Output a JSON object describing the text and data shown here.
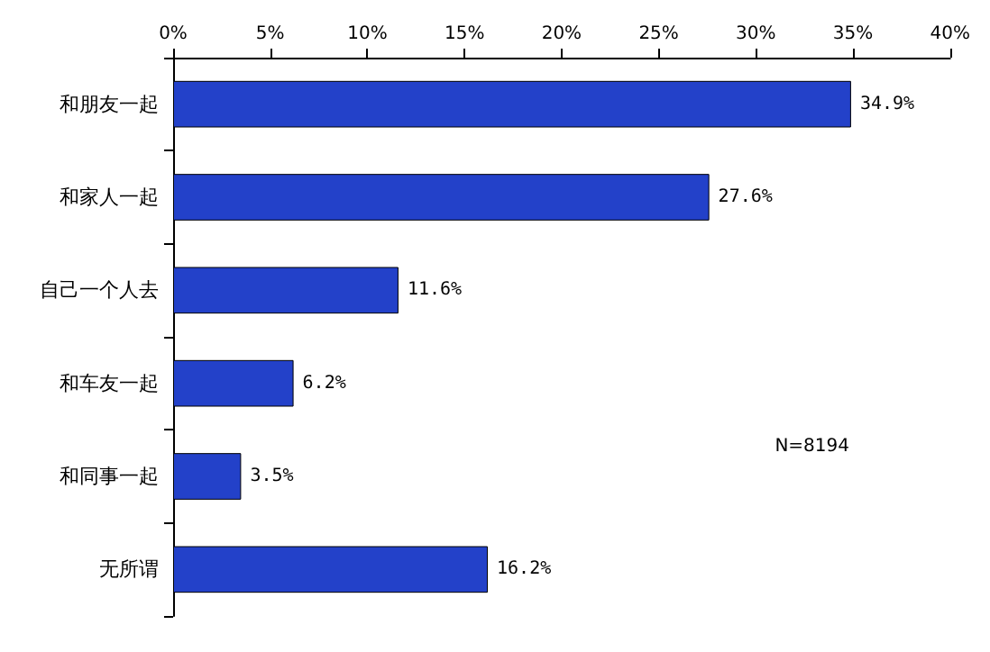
{
  "chart_data": {
    "type": "bar",
    "orientation": "horizontal",
    "categories": [
      "和朋友一起",
      "和家人一起",
      "自己一个人去",
      "和车友一起",
      "和同事一起",
      "无所谓"
    ],
    "values": [
      34.9,
      27.6,
      11.6,
      6.2,
      3.5,
      16.2
    ],
    "value_labels": [
      "34.9%",
      "27.6%",
      "11.6%",
      "6.2%",
      "3.5%",
      "16.2%"
    ],
    "color": "#2341c9",
    "xlim": [
      0,
      40
    ],
    "xticks": [
      {
        "value": 0,
        "label": "0%"
      },
      {
        "value": 5,
        "label": "5%"
      },
      {
        "value": 10,
        "label": "10%"
      },
      {
        "value": 15,
        "label": "15%"
      },
      {
        "value": 20,
        "label": "20%"
      },
      {
        "value": 25,
        "label": "25%"
      },
      {
        "value": 30,
        "label": "30%"
      },
      {
        "value": 35,
        "label": "35%"
      },
      {
        "value": 40,
        "label": "40%"
      }
    ],
    "grid": false,
    "annotations": [
      "N=8194"
    ]
  }
}
